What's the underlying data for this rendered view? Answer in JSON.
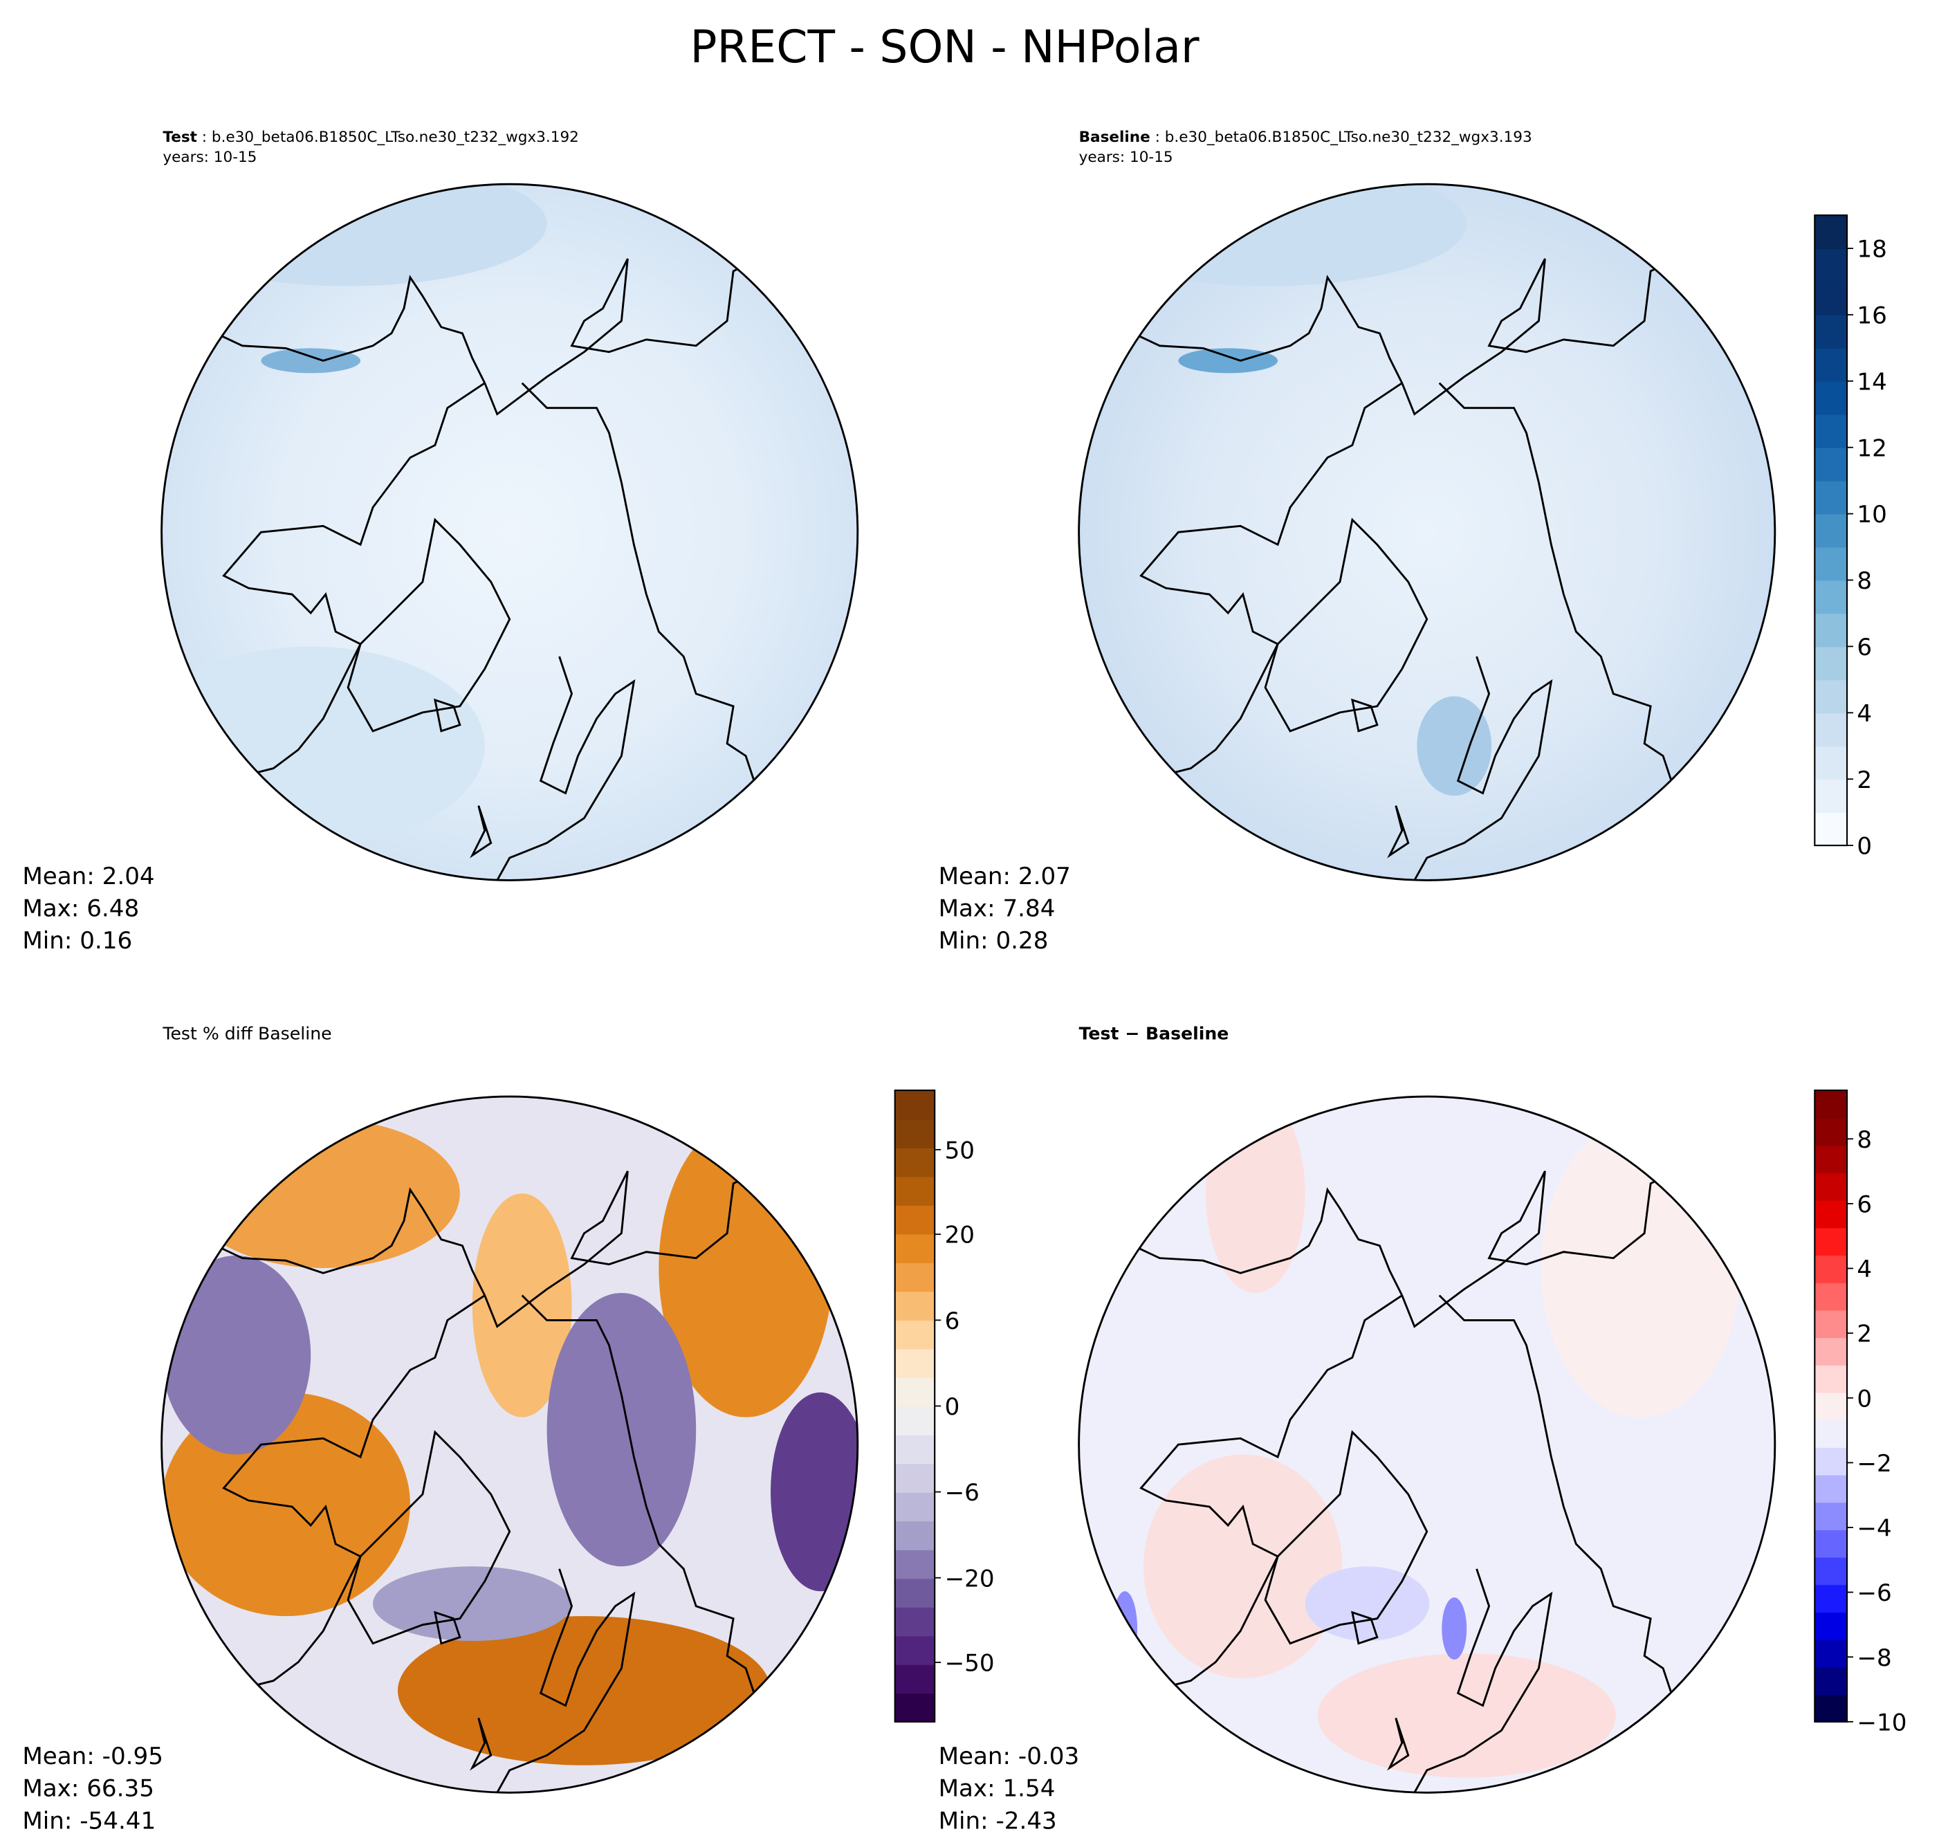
{
  "title": "PRECT - SON - NHPolar",
  "panels": [
    {
      "label_bold": "Test",
      "label_rest": " : b.e30_beta06.B1850C_LTso.ne30_t232_wgx3.192",
      "years": "years: 10-15",
      "stats": {
        "mean": "Mean:  2.04",
        "max": "Max:  6.48",
        "min": "Min:  0.16"
      }
    },
    {
      "label_bold": "Baseline",
      "label_rest": " : b.e30_beta06.B1850C_LTso.ne30_t232_wgx3.193",
      "years": "years: 10-15",
      "stats": {
        "mean": "Mean:  2.07",
        "max": "Max:  7.84",
        "min": "Min:  0.28"
      }
    },
    {
      "label_bold": "",
      "label_rest": "Test % diff Baseline",
      "years": "",
      "stats": {
        "mean": "Mean: -0.95",
        "max": "Max: 66.35",
        "min": "Min: -54.41"
      }
    },
    {
      "label_bold": "Test − Baseline",
      "label_rest": "",
      "years": "",
      "stats": {
        "mean": "Mean: -0.03",
        "max": "Max:  1.54",
        "min": "Min: -2.43"
      }
    }
  ],
  "chart_data": [
    {
      "type": "heatmap",
      "title": "Test",
      "projection": "north-polar-stereographic",
      "field": "PRECT",
      "season": "SON",
      "mean": 2.04,
      "max": 6.48,
      "min": 0.16,
      "colormap": "Blues",
      "vmin": 0,
      "vmax": 19
    },
    {
      "type": "heatmap",
      "title": "Baseline",
      "projection": "north-polar-stereographic",
      "field": "PRECT",
      "season": "SON",
      "mean": 2.07,
      "max": 7.84,
      "min": 0.28,
      "colormap": "Blues",
      "vmin": 0,
      "vmax": 19,
      "colorbar": {
        "ticks": [
          "0",
          "2",
          "4",
          "6",
          "8",
          "10",
          "12",
          "14",
          "16",
          "18"
        ],
        "tick_values": [
          0,
          2,
          4,
          6,
          8,
          10,
          12,
          14,
          16,
          18
        ],
        "levels": 19
      }
    },
    {
      "type": "heatmap",
      "title": "Test % diff Baseline",
      "mean": -0.95,
      "max": 66.35,
      "min": -54.41,
      "colormap": "PuOr_r",
      "colorbar": {
        "ticks": [
          "50",
          "20",
          "6",
          "0",
          "−6",
          "−20",
          "−50"
        ],
        "levels": 22
      }
    },
    {
      "type": "heatmap",
      "title": "Test − Baseline",
      "mean": -0.03,
      "max": 1.54,
      "min": -2.43,
      "colormap": "seismic",
      "colorbar": {
        "ticks": [
          "8",
          "6",
          "4",
          "2",
          "0",
          "−2",
          "−4",
          "−6",
          "−8",
          "−10"
        ],
        "tick_values": [
          8,
          6,
          4,
          2,
          0,
          -2,
          -4,
          -6,
          -8,
          -10
        ],
        "vmin": -10,
        "vmax": 9.5
      }
    }
  ],
  "colors": {
    "blues": [
      "#f7fbff",
      "#e8f1fa",
      "#dbe9f6",
      "#cde0f1",
      "#bad6eb",
      "#a6cde3",
      "#8dc0dd",
      "#72b2d8",
      "#58a1ce",
      "#4491c6",
      "#3080bd",
      "#1f6eb3",
      "#125ea6",
      "#08509a",
      "#08458a",
      "#083a7a",
      "#082f6a",
      "#08306b",
      "#072858"
    ],
    "puor": [
      "#2d004b",
      "#3f0d63",
      "#51257e",
      "#5f3d8c",
      "#6f5a9e",
      "#8879b2",
      "#a39fc8",
      "#bab7d8",
      "#cfcce4",
      "#e0dfee",
      "#eeeef1",
      "#f6efe6",
      "#fde6c8",
      "#fdd39e",
      "#f8bc72",
      "#f0a046",
      "#e58a22",
      "#d17112",
      "#b35f0a",
      "#9b5009",
      "#844208",
      "#7f3b08"
    ],
    "bwr": [
      "#00004c",
      "#000080",
      "#0000b2",
      "#0000e5",
      "#1a1aff",
      "#4040ff",
      "#6666ff",
      "#8c8cff",
      "#b2b2ff",
      "#d8d8ff",
      "#efeffb",
      "#fbeeee",
      "#ffd8d8",
      "#ffb2b2",
      "#ff8c8c",
      "#ff6666",
      "#ff4040",
      "#ff1a1a",
      "#e50000",
      "#c80000",
      "#a80000",
      "#8c0000",
      "#800000"
    ]
  }
}
